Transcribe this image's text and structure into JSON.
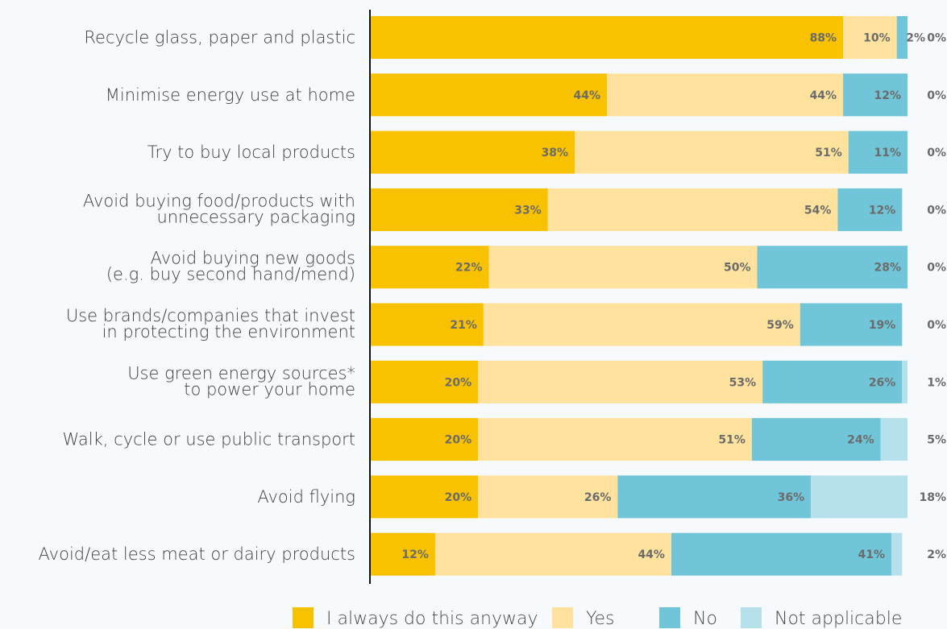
{
  "chart_data": {
    "type": "bar",
    "orientation": "horizontal",
    "stacked": true,
    "percent": true,
    "categories": [
      [
        "Recycle glass, paper and plastic"
      ],
      [
        "Minimise energy use at home"
      ],
      [
        "Try to buy local products"
      ],
      [
        "Avoid buying food/products with",
        "unnecessary packaging"
      ],
      [
        "Avoid buying new goods",
        "(e.g. buy second hand/mend)"
      ],
      [
        "Use brands/companies that invest",
        "in protecting the environment"
      ],
      [
        "Use green energy sources*",
        "to power your home"
      ],
      [
        "Walk, cycle or use public transport"
      ],
      [
        "Avoid flying"
      ],
      [
        "Avoid/eat less meat or dairy products"
      ]
    ],
    "series": [
      {
        "name": "I always do this anyway",
        "color": "#f8c200",
        "values": [
          88,
          44,
          38,
          33,
          22,
          21,
          20,
          20,
          20,
          12
        ]
      },
      {
        "name": "Yes",
        "color": "#fee29e",
        "values": [
          10,
          44,
          51,
          54,
          50,
          59,
          53,
          51,
          26,
          44
        ]
      },
      {
        "name": "No",
        "color": "#70c6d8",
        "values": [
          2,
          12,
          11,
          12,
          28,
          19,
          26,
          24,
          36,
          41
        ]
      },
      {
        "name": "Not applicable",
        "color": "#b6e0eb",
        "values": [
          0,
          0,
          0,
          0,
          0,
          0,
          1,
          5,
          18,
          2
        ]
      }
    ],
    "data_labels": [
      [
        "88%",
        "10%",
        "2%",
        "0%"
      ],
      [
        "44%",
        "44%",
        "12%",
        "0%"
      ],
      [
        "38%",
        "51%",
        "11%",
        "0%"
      ],
      [
        "33%",
        "54%",
        "12%",
        "0%"
      ],
      [
        "22%",
        "50%",
        "28%",
        "0%"
      ],
      [
        "21%",
        "59%",
        "19%",
        "0%"
      ],
      [
        "20%",
        "53%",
        "26%",
        "1%"
      ],
      [
        "20%",
        "51%",
        "24%",
        "5%"
      ],
      [
        "20%",
        "26%",
        "36%",
        "18%"
      ],
      [
        "12%",
        "44%",
        "41%",
        "2%"
      ]
    ],
    "xlim": [
      0,
      100
    ],
    "legend": "bottom",
    "grid": false
  }
}
